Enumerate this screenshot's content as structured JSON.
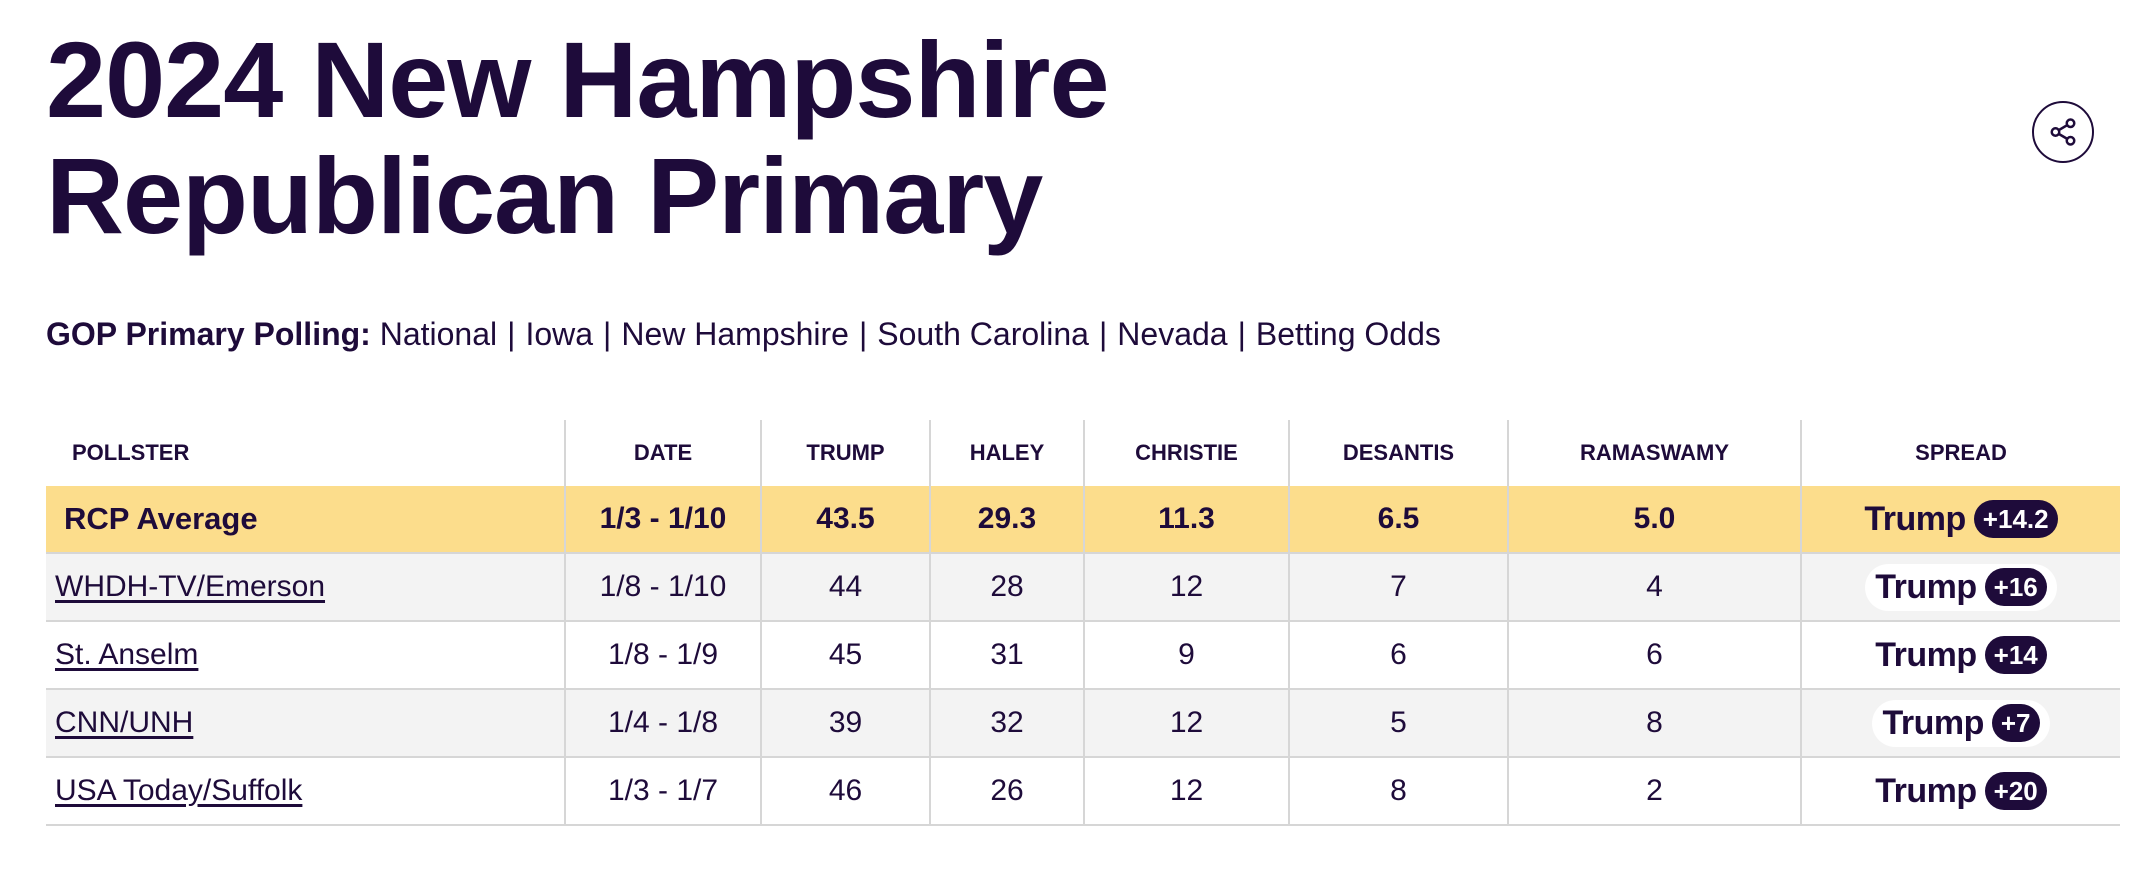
{
  "page": {
    "title_line1": "2024 New Hampshire",
    "title_line2": "Republican Primary",
    "share_icon": "share-icon"
  },
  "nav": {
    "label": "GOP Primary Polling:",
    "links": [
      "National",
      "Iowa",
      "New Hampshire",
      "South Carolina",
      "Nevada",
      "Betting Odds"
    ],
    "separator": "|"
  },
  "table": {
    "headers": [
      "POLLSTER",
      "DATE",
      "TRUMP",
      "HALEY",
      "CHRISTIE",
      "DESANTIS",
      "RAMASWAMY",
      "SPREAD"
    ],
    "average": {
      "pollster": "RCP Average",
      "date": "1/3 - 1/10",
      "trump": "43.5",
      "haley": "29.3",
      "christie": "11.3",
      "desantis": "6.5",
      "ramaswamy": "5.0",
      "spread_candidate": "Trump",
      "spread_value": "+14.2"
    },
    "rows": [
      {
        "pollster": "WHDH-TV/Emerson",
        "date": "1/8 - 1/10",
        "trump": "44",
        "haley": "28",
        "christie": "12",
        "desantis": "7",
        "ramaswamy": "4",
        "spread_candidate": "Trump",
        "spread_value": "+16"
      },
      {
        "pollster": "St. Anselm",
        "date": "1/8 - 1/9",
        "trump": "45",
        "haley": "31",
        "christie": "9",
        "desantis": "6",
        "ramaswamy": "6",
        "spread_candidate": "Trump",
        "spread_value": "+14"
      },
      {
        "pollster": "CNN/UNH",
        "date": "1/4 - 1/8",
        "trump": "39",
        "haley": "32",
        "christie": "12",
        "desantis": "5",
        "ramaswamy": "8",
        "spread_candidate": "Trump",
        "spread_value": "+7"
      },
      {
        "pollster": "USA Today/Suffolk",
        "date": "1/3 - 1/7",
        "trump": "46",
        "haley": "26",
        "christie": "12",
        "desantis": "8",
        "ramaswamy": "2",
        "spread_candidate": "Trump",
        "spread_value": "+20"
      }
    ]
  },
  "colors": {
    "text": "#1e0b3a",
    "average_row": "#fcdd8c",
    "striped_row": "#f3f3f3",
    "badge_bg": "#1e0b3a",
    "badge_text": "#ffffff"
  }
}
